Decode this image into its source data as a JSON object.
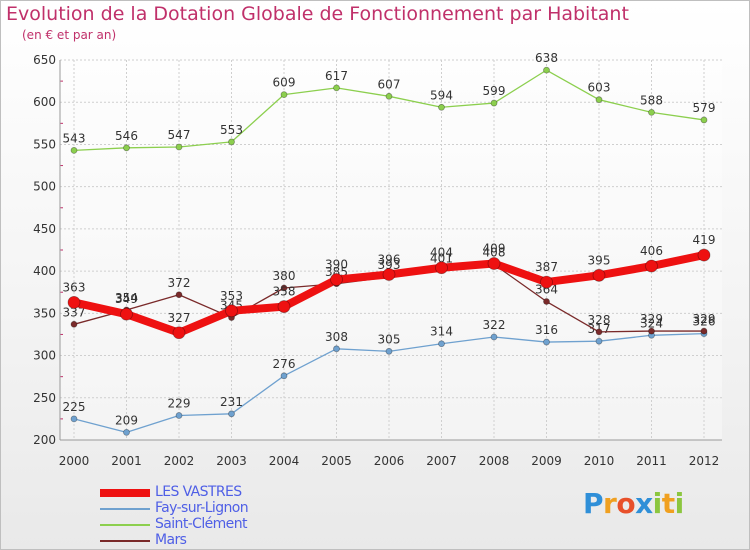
{
  "title": "Evolution de la Dotation Globale de Fonctionnement par Habitant",
  "subtitle": "(en € et par an)",
  "logo": {
    "text": "Proxiti",
    "letters": [
      {
        "ch": "P",
        "color": "#2f8fd8"
      },
      {
        "ch": "r",
        "color": "#f0a020"
      },
      {
        "ch": "o",
        "color": "#e8502a"
      },
      {
        "ch": "x",
        "color": "#2f8fd8"
      },
      {
        "ch": "i",
        "color": "#8cc63f"
      },
      {
        "ch": "t",
        "color": "#f0a020"
      },
      {
        "ch": "i",
        "color": "#8cc63f"
      }
    ]
  },
  "chart_data": {
    "type": "line",
    "x": [
      "2000",
      "2001",
      "2002",
      "2003",
      "2004",
      "2005",
      "2006",
      "2007",
      "2008",
      "2009",
      "2010",
      "2011",
      "2012"
    ],
    "ylim": [
      200,
      650
    ],
    "yticks": [
      200,
      250,
      300,
      350,
      400,
      450,
      500,
      550,
      600,
      650
    ],
    "grid": true,
    "legend_position": "bottom-left",
    "series": [
      {
        "name": "Saint-Clément",
        "color": "#8ccf4e",
        "values": [
          543,
          546,
          547,
          553,
          609,
          617,
          607,
          594,
          599,
          638,
          603,
          588,
          579
        ]
      },
      {
        "name": "Fay-sur-Lignon",
        "color": "#6fa1cf",
        "values": [
          225,
          209,
          229,
          231,
          276,
          308,
          305,
          314,
          322,
          316,
          317,
          324,
          326
        ]
      },
      {
        "name": "Mars",
        "color": "#7a2a2a",
        "values": [
          337,
          354,
          372,
          345,
          380,
          385,
          393,
          401,
          408,
          364,
          328,
          329,
          329
        ]
      },
      {
        "name": "LES VASTRES",
        "color": "#ee1111",
        "values": [
          363,
          349,
          327,
          353,
          358,
          390,
          396,
          404,
          409,
          387,
          395,
          406,
          419
        ]
      }
    ],
    "point_labels": {
      "Saint-Clément": [
        "543",
        "546",
        "547",
        "553",
        "609",
        "617",
        "607",
        "594",
        "599",
        "638",
        "603",
        "588",
        "579"
      ],
      "Fay-sur-Lignon": [
        "225",
        "209",
        "229",
        "231",
        "276",
        "308",
        "305",
        "314",
        "322",
        "316",
        "317",
        "324",
        "326"
      ],
      "Mars": [
        "337",
        "354",
        "372",
        "345",
        "380",
        "385",
        "393",
        "401",
        "408",
        "364",
        "328",
        "329",
        "329"
      ],
      "LES VASTRES": [
        "363",
        "349",
        "327",
        "353",
        "358",
        "390",
        "396",
        "404",
        "409",
        "387",
        "395",
        "406",
        "419"
      ]
    },
    "legend": [
      {
        "name": "LES VASTRES",
        "color": "#ee1111",
        "thick": true
      },
      {
        "name": "Fay-sur-Lignon",
        "color": "#6fa1cf",
        "thick": false
      },
      {
        "name": "Saint-Clément",
        "color": "#8ccf4e",
        "thick": false
      },
      {
        "name": "Mars",
        "color": "#7a2a2a",
        "thick": false
      }
    ]
  }
}
